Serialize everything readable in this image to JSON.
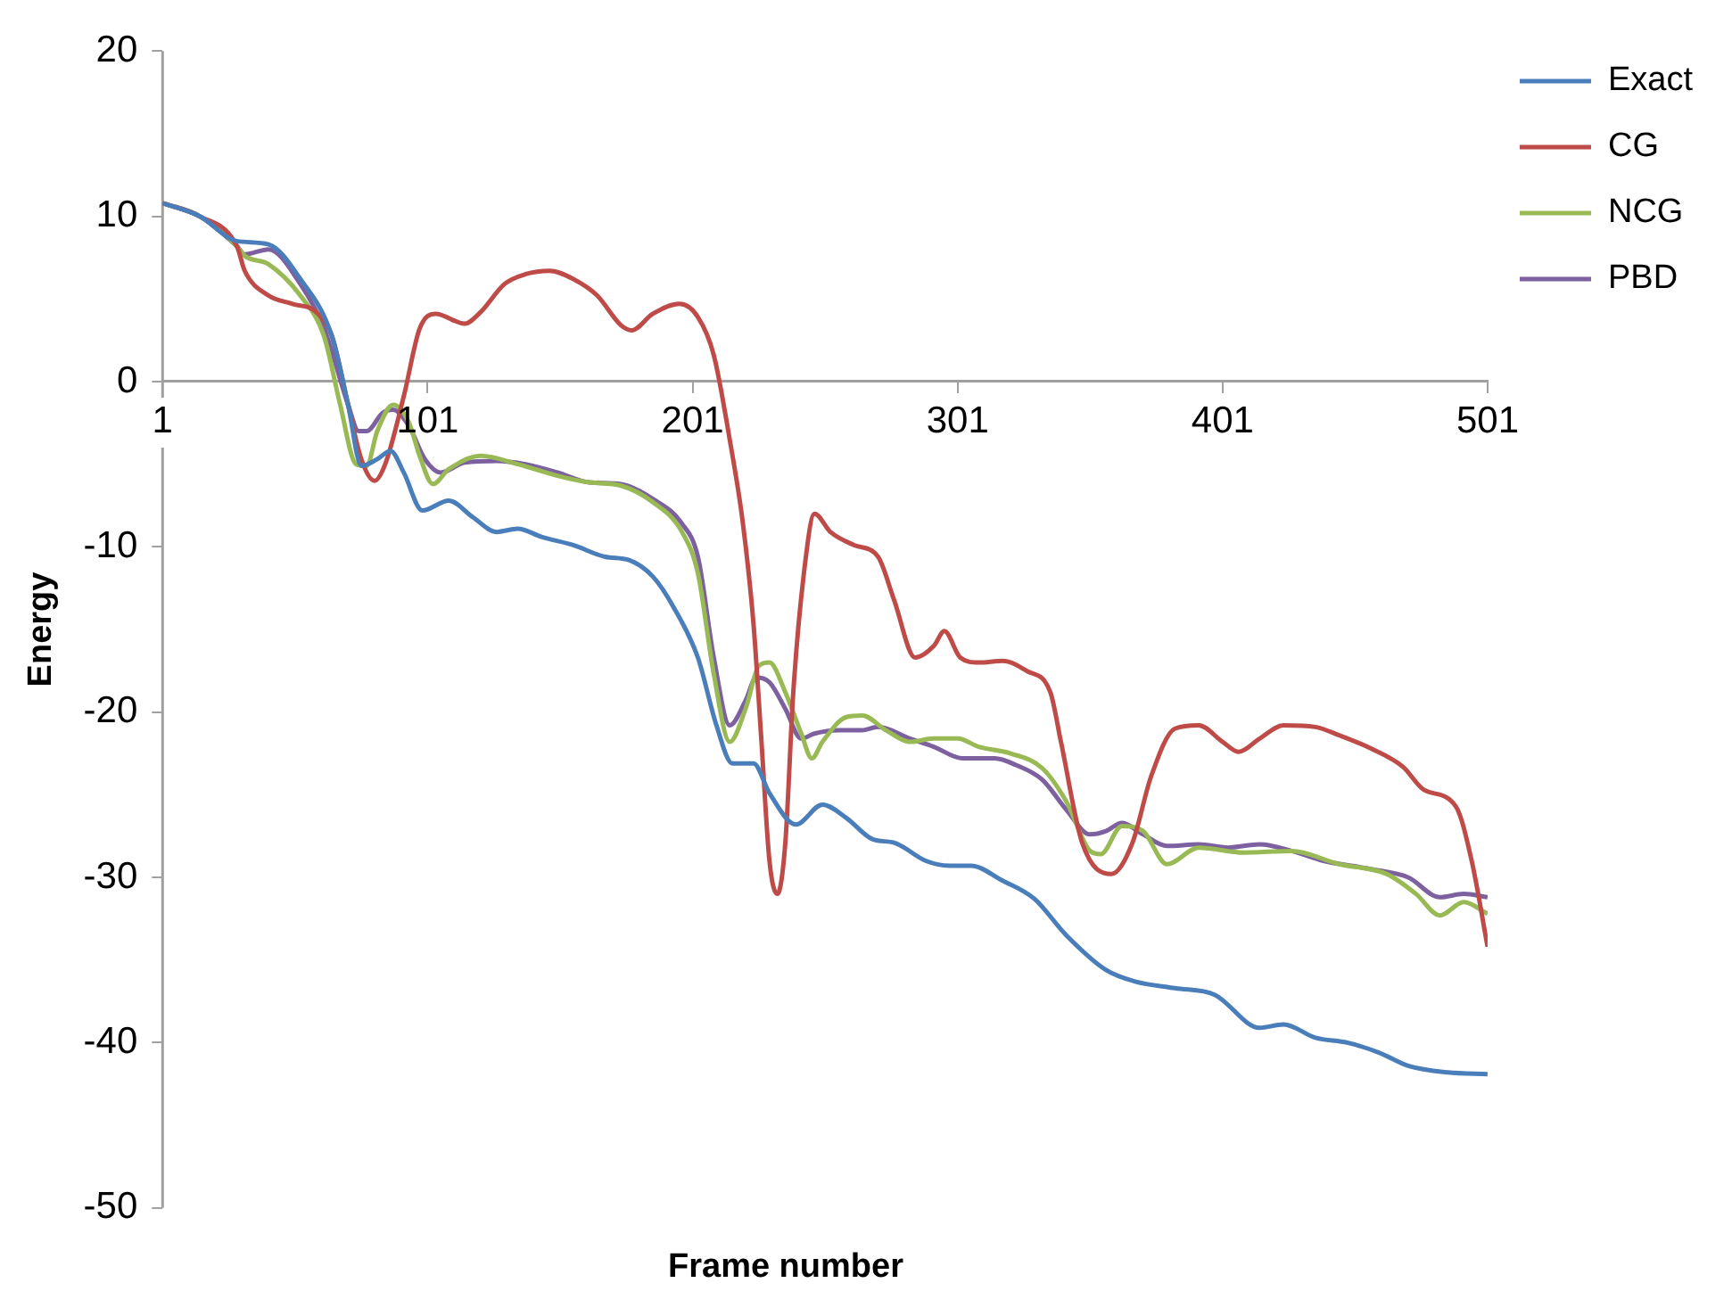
{
  "chart_data": {
    "type": "line",
    "xlabel": "Frame number",
    "ylabel": "Energy",
    "xlim": [
      1,
      501
    ],
    "xticks": [
      1,
      101,
      201,
      301,
      401,
      501
    ],
    "ylim": [
      -50,
      20
    ],
    "yticks": [
      -50,
      -40,
      -30,
      -20,
      -10,
      0,
      10,
      20
    ],
    "grid": false,
    "legend": "top right",
    "marker": "none",
    "line_style": "solid",
    "series": [
      {
        "name": "Exact",
        "color": "#4a7ebb",
        "x": [
          1,
          15,
          29,
          41,
          53,
          65,
          71,
          76,
          82,
          87,
          92,
          99,
          109,
          118,
          127,
          135,
          144,
          156,
          168,
          177,
          186,
          194,
          203,
          210,
          216,
          224,
          230,
          240,
          250,
          259,
          269,
          277,
          289,
          298,
          306,
          318,
          330,
          342,
          357,
          368,
          383,
          398,
          415,
          424,
          436,
          448,
          460,
          471,
          486,
          501
        ],
        "values": [
          10.8,
          10,
          8.5,
          8.3,
          6.2,
          2.7,
          -1.4,
          -5.1,
          -4.7,
          -4.2,
          -5.5,
          -7.8,
          -7.2,
          -8.2,
          -9.1,
          -8.9,
          -9.4,
          -9.9,
          -10.6,
          -10.8,
          -11.8,
          -13.7,
          -16.7,
          -20.8,
          -23.1,
          -23.1,
          -24.9,
          -26.8,
          -25.6,
          -26.4,
          -27.7,
          -27.9,
          -29,
          -29.3,
          -29.3,
          -30.2,
          -31.3,
          -33.5,
          -35.6,
          -36.3,
          -36.7,
          -37.1,
          -39.1,
          -38.9,
          -39.7,
          -40,
          -40.6,
          -41.4,
          -41.8,
          -41.9
        ]
      },
      {
        "name": "CG",
        "color": "#be4b48",
        "x": [
          1,
          15,
          29,
          32,
          41,
          50,
          59,
          65,
          71,
          76,
          81,
          85,
          92,
          98,
          104,
          115,
          121,
          130,
          138,
          147,
          156,
          165,
          174,
          178,
          186,
          196,
          203,
          209,
          215,
          220,
          224,
          227,
          230,
          233,
          236,
          239,
          243,
          247,
          253,
          262,
          271,
          277,
          285,
          292,
          296,
          302,
          309,
          318,
          327,
          336,
          340,
          348,
          359,
          367,
          374,
          383,
          392,
          401,
          407,
          415,
          424,
          436,
          445,
          457,
          469,
          477,
          489,
          495,
          501
        ],
        "values": [
          10.8,
          10,
          8.2,
          6.7,
          5.2,
          4.7,
          4.2,
          2.7,
          -1.4,
          -4.7,
          -6,
          -5,
          -0.9,
          3.2,
          4.1,
          3.5,
          4.2,
          5.9,
          6.5,
          6.7,
          6.2,
          5.2,
          3.4,
          3.1,
          4.1,
          4.7,
          3.9,
          1.6,
          -3.5,
          -8.6,
          -14.7,
          -21.8,
          -29,
          -31,
          -27.9,
          -18.8,
          -11.6,
          -8,
          -9.1,
          -9.9,
          -10.6,
          -13.2,
          -16.7,
          -16,
          -15.1,
          -16.7,
          -17,
          -16.9,
          -17.5,
          -18.8,
          -21.8,
          -27.9,
          -29.8,
          -27.9,
          -23.9,
          -21,
          -20.8,
          -21.8,
          -22.4,
          -21.6,
          -20.8,
          -20.9,
          -21.4,
          -22.2,
          -23.3,
          -24.7,
          -25.7,
          -29,
          -34.2
        ]
      },
      {
        "name": "NCG",
        "color": "#98b954",
        "x": [
          1,
          15,
          29,
          32,
          41,
          53,
          62,
          68,
          74,
          78,
          82,
          88,
          94,
          98,
          103,
          109,
          121,
          135,
          150,
          162,
          174,
          186,
          197,
          203,
          209,
          215,
          221,
          226,
          230,
          236,
          242,
          246,
          250,
          259,
          265,
          274,
          283,
          292,
          301,
          309,
          321,
          333,
          342,
          351,
          355,
          363,
          371,
          380,
          392,
          409,
          427,
          445,
          463,
          474,
          483,
          492,
          501
        ],
        "values": [
          10.8,
          10,
          8.2,
          7.6,
          7.1,
          5.2,
          2.7,
          -1.4,
          -5,
          -5.1,
          -3,
          -1.4,
          -2.5,
          -4.5,
          -6.2,
          -5.3,
          -4.5,
          -5,
          -5.7,
          -6.1,
          -6.3,
          -7.3,
          -9.1,
          -11.6,
          -17.7,
          -21.8,
          -19.8,
          -17.2,
          -17,
          -18.8,
          -21.3,
          -22.8,
          -21.8,
          -20.3,
          -20.2,
          -21.1,
          -21.8,
          -21.6,
          -21.6,
          -22.1,
          -22.5,
          -23.4,
          -25.4,
          -28.4,
          -28.6,
          -26.9,
          -27.2,
          -29.2,
          -28.2,
          -28.5,
          -28.4,
          -29.2,
          -29.8,
          -31,
          -32.3,
          -31.5,
          -32.2
        ]
      },
      {
        "name": "PBD",
        "color": "#7d60a0",
        "x": [
          1,
          15,
          29,
          32,
          41,
          53,
          62,
          71,
          75,
          78,
          84,
          88,
          94,
          100,
          106,
          115,
          127,
          138,
          150,
          162,
          174,
          186,
          197,
          203,
          209,
          215,
          221,
          225,
          230,
          236,
          242,
          247,
          256,
          265,
          271,
          283,
          292,
          303,
          315,
          323,
          333,
          342,
          351,
          357,
          363,
          371,
          380,
          392,
          403,
          415,
          427,
          439,
          457,
          471,
          483,
          492,
          501
        ],
        "values": [
          10.8,
          10,
          8.2,
          7.7,
          8,
          5.9,
          3.2,
          -1.4,
          -3,
          -3,
          -1.9,
          -1.7,
          -2.7,
          -4.7,
          -5.5,
          -4.9,
          -4.8,
          -5,
          -5.5,
          -6.1,
          -6.2,
          -7.1,
          -8.6,
          -10.6,
          -16.7,
          -20.8,
          -19.3,
          -17.9,
          -18.2,
          -19.8,
          -21.6,
          -21.3,
          -21.1,
          -21.1,
          -20.9,
          -21.6,
          -22.1,
          -22.8,
          -22.8,
          -23.2,
          -24.1,
          -25.9,
          -27.4,
          -27.2,
          -26.7,
          -27.4,
          -28.1,
          -28,
          -28.2,
          -28,
          -28.4,
          -29,
          -29.5,
          -30,
          -31.2,
          -31,
          -31.2
        ]
      }
    ]
  }
}
